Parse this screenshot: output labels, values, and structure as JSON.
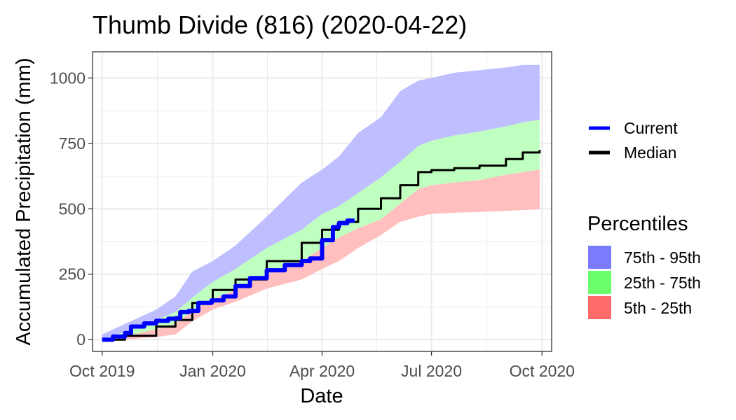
{
  "chart_data": {
    "type": "area",
    "title": "Thumb Divide (816) (2020-04-22)",
    "xlabel": "Date",
    "ylabel": "Accumulated Precipitation (mm)",
    "xlim": [
      "2019-09-23",
      "2020-10-09"
    ],
    "ylim": [
      -45,
      1100
    ],
    "x_ticks": [
      {
        "date": "2019-10-01",
        "label": "Oct 2019"
      },
      {
        "date": "2020-01-01",
        "label": "Jan 2020"
      },
      {
        "date": "2020-04-01",
        "label": "Apr 2020"
      },
      {
        "date": "2020-07-01",
        "label": "Jul 2020"
      },
      {
        "date": "2020-10-01",
        "label": "Oct 2020"
      }
    ],
    "y_ticks": [
      0,
      250,
      500,
      750,
      1000
    ],
    "grid": true,
    "legend_line_title": "",
    "legend_fill_title": "Percentiles",
    "legend_placement": "right",
    "line_series": [
      {
        "name": "Current",
        "color": "#0000ff",
        "points": [
          [
            "2019-10-01",
            0
          ],
          [
            "2019-10-10",
            12
          ],
          [
            "2019-10-20",
            25
          ],
          [
            "2019-10-25",
            50
          ],
          [
            "2019-11-05",
            62
          ],
          [
            "2019-11-15",
            72
          ],
          [
            "2019-11-25",
            80
          ],
          [
            "2019-12-01",
            82
          ],
          [
            "2019-12-05",
            105
          ],
          [
            "2019-12-12",
            110
          ],
          [
            "2019-12-20",
            140
          ],
          [
            "2019-12-31",
            150
          ],
          [
            "2020-01-10",
            165
          ],
          [
            "2020-01-20",
            205
          ],
          [
            "2020-02-01",
            235
          ],
          [
            "2020-02-15",
            265
          ],
          [
            "2020-03-01",
            285
          ],
          [
            "2020-03-15",
            300
          ],
          [
            "2020-03-22",
            310
          ],
          [
            "2020-04-01",
            380
          ],
          [
            "2020-04-10",
            430
          ],
          [
            "2020-04-15",
            445
          ],
          [
            "2020-04-22",
            455
          ],
          [
            "2020-04-28",
            455
          ]
        ]
      },
      {
        "name": "Median",
        "color": "#000000",
        "points": [
          [
            "2019-10-01",
            0
          ],
          [
            "2019-10-20",
            15
          ],
          [
            "2019-11-15",
            50
          ],
          [
            "2019-12-01",
            75
          ],
          [
            "2019-12-15",
            140
          ],
          [
            "2020-01-01",
            190
          ],
          [
            "2020-01-20",
            230
          ],
          [
            "2020-02-15",
            300
          ],
          [
            "2020-03-15",
            370
          ],
          [
            "2020-04-01",
            420
          ],
          [
            "2020-04-15",
            450
          ],
          [
            "2020-05-01",
            500
          ],
          [
            "2020-05-20",
            540
          ],
          [
            "2020-06-05",
            590
          ],
          [
            "2020-06-20",
            640
          ],
          [
            "2020-07-01",
            648
          ],
          [
            "2020-07-20",
            655
          ],
          [
            "2020-08-10",
            665
          ],
          [
            "2020-09-01",
            690
          ],
          [
            "2020-09-15",
            715
          ],
          [
            "2020-09-29",
            725
          ]
        ]
      }
    ],
    "bands": [
      {
        "name": "75th - 95th",
        "color": "#7b7bff",
        "fill_color": "#bfbfff",
        "x": [
          "2019-10-01",
          "2019-10-20",
          "2019-11-15",
          "2019-12-01",
          "2019-12-15",
          "2020-01-01",
          "2020-01-20",
          "2020-02-15",
          "2020-03-15",
          "2020-04-01",
          "2020-04-15",
          "2020-05-01",
          "2020-05-20",
          "2020-06-05",
          "2020-06-20",
          "2020-07-01",
          "2020-07-20",
          "2020-08-10",
          "2020-09-01",
          "2020-09-15",
          "2020-09-29"
        ],
        "lower": [
          0,
          30,
          75,
          105,
          160,
          220,
          270,
          350,
          420,
          480,
          510,
          560,
          620,
          680,
          740,
          760,
          780,
          795,
          815,
          830,
          840
        ],
        "upper": [
          20,
          60,
          115,
          165,
          260,
          300,
          360,
          470,
          600,
          650,
          700,
          790,
          850,
          950,
          990,
          1000,
          1020,
          1030,
          1040,
          1050,
          1050
        ]
      },
      {
        "name": "25th - 75th",
        "color": "#6bff6b",
        "fill_color": "#bfffbf",
        "x": [
          "2019-10-01",
          "2019-10-20",
          "2019-11-15",
          "2019-12-01",
          "2019-12-15",
          "2020-01-01",
          "2020-01-20",
          "2020-02-15",
          "2020-03-15",
          "2020-04-01",
          "2020-04-15",
          "2020-05-01",
          "2020-05-20",
          "2020-06-05",
          "2020-06-20",
          "2020-07-01",
          "2020-07-20",
          "2020-08-10",
          "2020-09-01",
          "2020-09-15",
          "2020-09-29"
        ],
        "lower": [
          0,
          12,
          40,
          60,
          110,
          155,
          190,
          250,
          300,
          350,
          390,
          425,
          460,
          520,
          575,
          590,
          600,
          610,
          630,
          640,
          650
        ],
        "upper": [
          0,
          30,
          75,
          105,
          160,
          220,
          270,
          350,
          420,
          480,
          510,
          560,
          620,
          680,
          740,
          760,
          780,
          795,
          815,
          830,
          840
        ]
      },
      {
        "name": "5th - 25th",
        "color": "#ff6b6b",
        "fill_color": "#ffbfbf",
        "x": [
          "2019-10-01",
          "2019-10-20",
          "2019-11-15",
          "2019-12-01",
          "2019-12-15",
          "2020-01-01",
          "2020-01-20",
          "2020-02-15",
          "2020-03-15",
          "2020-04-01",
          "2020-04-15",
          "2020-05-01",
          "2020-05-20",
          "2020-06-05",
          "2020-06-20",
          "2020-07-01",
          "2020-07-20",
          "2020-08-10",
          "2020-09-01",
          "2020-09-15",
          "2020-09-29"
        ],
        "lower": [
          0,
          0,
          10,
          20,
          70,
          115,
          145,
          195,
          230,
          270,
          300,
          350,
          400,
          450,
          470,
          480,
          485,
          488,
          492,
          495,
          498
        ],
        "upper": [
          0,
          12,
          40,
          60,
          110,
          155,
          190,
          250,
          300,
          350,
          390,
          425,
          460,
          520,
          575,
          590,
          600,
          610,
          630,
          640,
          650
        ]
      }
    ]
  }
}
